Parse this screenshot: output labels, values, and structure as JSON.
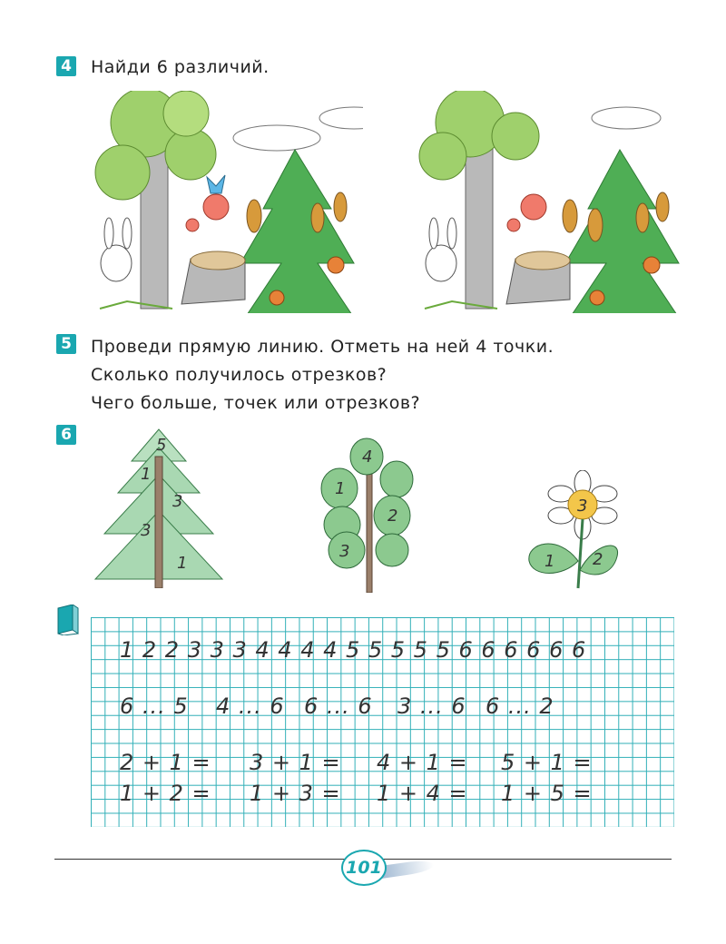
{
  "tasks": [
    {
      "number": "4",
      "text": "Найди 6 различий."
    },
    {
      "number": "5",
      "lines": [
        "Проведи прямую линию. Отметь на ней 4 точки.",
        "Сколько получилось отрезков?",
        "Чего больше, точек или отрезков?"
      ]
    },
    {
      "number": "6"
    }
  ],
  "task6_labels": {
    "fir": [
      "5",
      "1",
      "3",
      "3",
      "1"
    ],
    "bush": [
      "4",
      "1",
      "2",
      "3"
    ],
    "flower": [
      "3",
      "1",
      "2"
    ]
  },
  "copybook": {
    "row1": "1 2 2 3 3 3 4 4 4 4 5 5 5 5 5 6 6 6 6 6 6",
    "row2": [
      "6 ... 5",
      "4 ... 6",
      "6 ... 6",
      "3 ... 6",
      "6 ... 2"
    ],
    "row3": [
      "2 + 1 =",
      "3 + 1 =",
      "4 + 1 =",
      "5 + 1 ="
    ],
    "row4": [
      "1 + 2 =",
      "1 + 3 =",
      "1 + 4 =",
      "1 + 5 ="
    ]
  },
  "page_number": "101",
  "colors": {
    "accent": "#1aa7b0"
  }
}
